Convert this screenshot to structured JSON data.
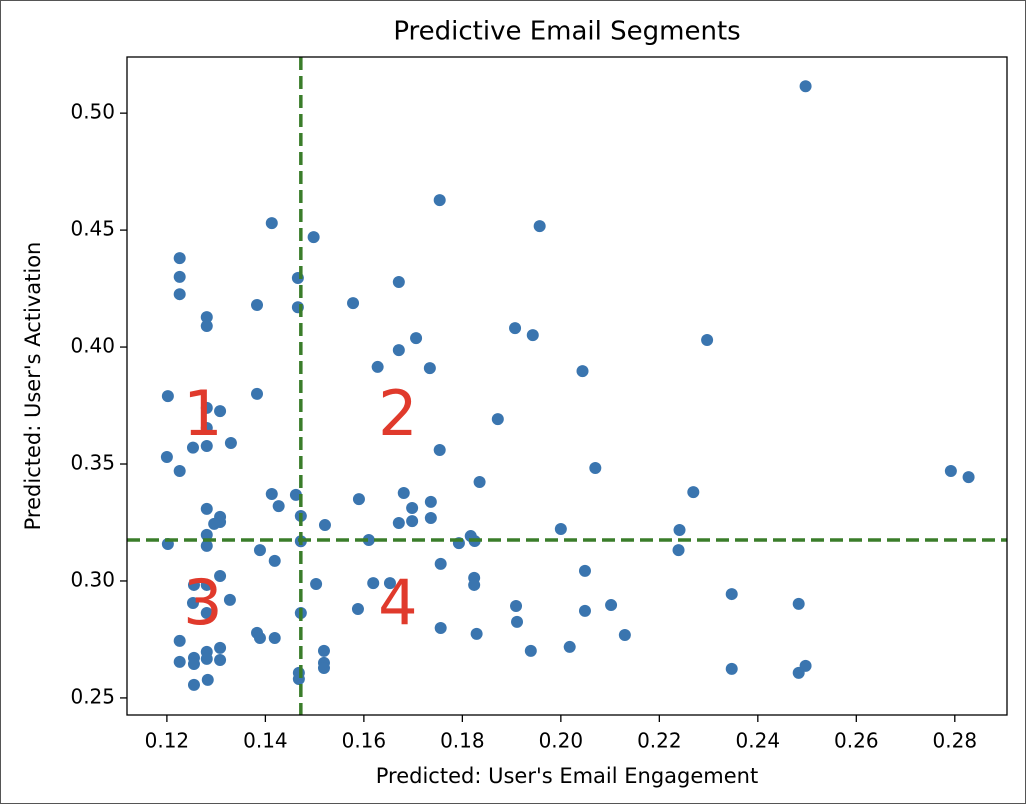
{
  "chart_data": {
    "type": "scatter",
    "title": "Predictive Email Segments",
    "x_label": "Predicted: User's Email Engagement",
    "y_label": "Predicted: User's Activation",
    "xlim": [
      0.1119,
      0.2906
    ],
    "ylim": [
      0.2427,
      0.524
    ],
    "xticks": [
      0.12,
      0.14,
      0.16,
      0.18,
      {
        "value": 0.2,
        "label": "0.20"
      },
      0.22,
      0.24,
      0.26,
      0.28
    ],
    "yticks": [
      0.25,
      {
        "value": 0.3,
        "label": "0.30"
      },
      0.35,
      {
        "value": 0.4,
        "label": "0.40"
      },
      0.45,
      {
        "value": 0.5,
        "label": "0.50"
      }
    ],
    "series": [
      {
        "color": "#3a75af",
        "x": [
          0.1226,
          0.1226,
          0.1226,
          0.1413,
          0.1498,
          0.1466,
          0.1466,
          0.1383,
          0.1281,
          0.1281,
          0.1202,
          0.1383,
          0.1281,
          0.1308,
          0.1281,
          0.1253,
          0.1281,
          0.133,
          0.12,
          0.1226,
          0.1413,
          0.1427,
          0.1462,
          0.1472,
          0.1281,
          0.1308,
          0.1308,
          0.1296,
          0.1281,
          0.1281,
          0.1202,
          0.1472,
          0.1389,
          0.1419,
          0.1255,
          0.1281,
          0.1308,
          0.1328,
          0.1253,
          0.1281,
          0.1472,
          0.1503,
          0.1383,
          0.1389,
          0.1419,
          0.1226,
          0.1308,
          0.1281,
          0.1281,
          0.1255,
          0.1226,
          0.1255,
          0.1308,
          0.1283,
          0.1255,
          0.1468,
          0.1468,
          0.1519,
          0.1519,
          0.1519,
          0.2497,
          0.1754,
          0.1957,
          0.1578,
          0.1671,
          0.1706,
          0.1671,
          0.1628,
          0.1734,
          0.1907,
          0.1943,
          0.2297,
          0.2044,
          0.1872,
          0.1754,
          0.207,
          0.1835,
          0.2792,
          0.2828,
          0.2269,
          0.1681,
          0.1736,
          0.159,
          0.1698,
          0.1698,
          0.1671,
          0.1736,
          0.1521,
          0.2,
          0.2241,
          0.1817,
          0.1825,
          0.1793,
          0.161,
          0.2239,
          0.1756,
          0.2049,
          0.1619,
          0.1653,
          0.1824,
          0.1824,
          0.1588,
          0.1909,
          0.2049,
          0.2102,
          0.2347,
          0.2483,
          0.1756,
          0.1829,
          0.213,
          0.1911,
          0.1939,
          0.2018,
          0.2347,
          0.2497,
          0.2483
        ],
        "values": [
          0.438,
          0.43,
          0.4226,
          0.453,
          0.447,
          0.4295,
          0.417,
          0.418,
          0.4128,
          0.409,
          0.379,
          0.38,
          0.374,
          0.3726,
          0.3654,
          0.357,
          0.3577,
          0.359,
          0.353,
          0.347,
          0.3372,
          0.332,
          0.3368,
          0.3278,
          0.3308,
          0.3274,
          0.3252,
          0.3244,
          0.3197,
          0.315,
          0.3158,
          0.317,
          0.3132,
          0.3086,
          0.2983,
          0.2983,
          0.3021,
          0.2919,
          0.2906,
          0.2863,
          0.2863,
          0.2987,
          0.2778,
          0.2756,
          0.2756,
          0.2744,
          0.2714,
          0.2697,
          0.2667,
          0.2671,
          0.2654,
          0.2645,
          0.2662,
          0.2577,
          0.2556,
          0.2607,
          0.2581,
          0.2701,
          0.265,
          0.2628,
          0.5115,
          0.4628,
          0.4517,
          0.4188,
          0.4278,
          0.4038,
          0.3987,
          0.3915,
          0.391,
          0.4081,
          0.4051,
          0.403,
          0.3897,
          0.3692,
          0.356,
          0.3483,
          0.3423,
          0.347,
          0.3444,
          0.338,
          0.3376,
          0.3338,
          0.335,
          0.3312,
          0.3256,
          0.3248,
          0.3269,
          0.3239,
          0.3222,
          0.3218,
          0.3192,
          0.3171,
          0.3162,
          0.3175,
          0.3132,
          0.3073,
          0.3043,
          0.2991,
          0.2991,
          0.3013,
          0.2983,
          0.288,
          0.2893,
          0.2872,
          0.2897,
          0.2944,
          0.2902,
          0.2799,
          0.2774,
          0.2769,
          0.2825,
          0.2701,
          0.2718,
          0.2624,
          0.2637,
          0.2607
        ]
      }
    ],
    "reference_lines": {
      "color": "#3a7d2a",
      "x": 0.1472,
      "y": 0.3175
    },
    "annotations": [
      {
        "text": "1",
        "x": 0.1273,
        "y": 0.3697
      },
      {
        "text": "2",
        "x": 0.1669,
        "y": 0.3697
      },
      {
        "text": "3",
        "x": 0.1273,
        "y": 0.289
      },
      {
        "text": "4",
        "x": 0.1669,
        "y": 0.289
      }
    ],
    "annotation_color": "#e03a2c"
  }
}
